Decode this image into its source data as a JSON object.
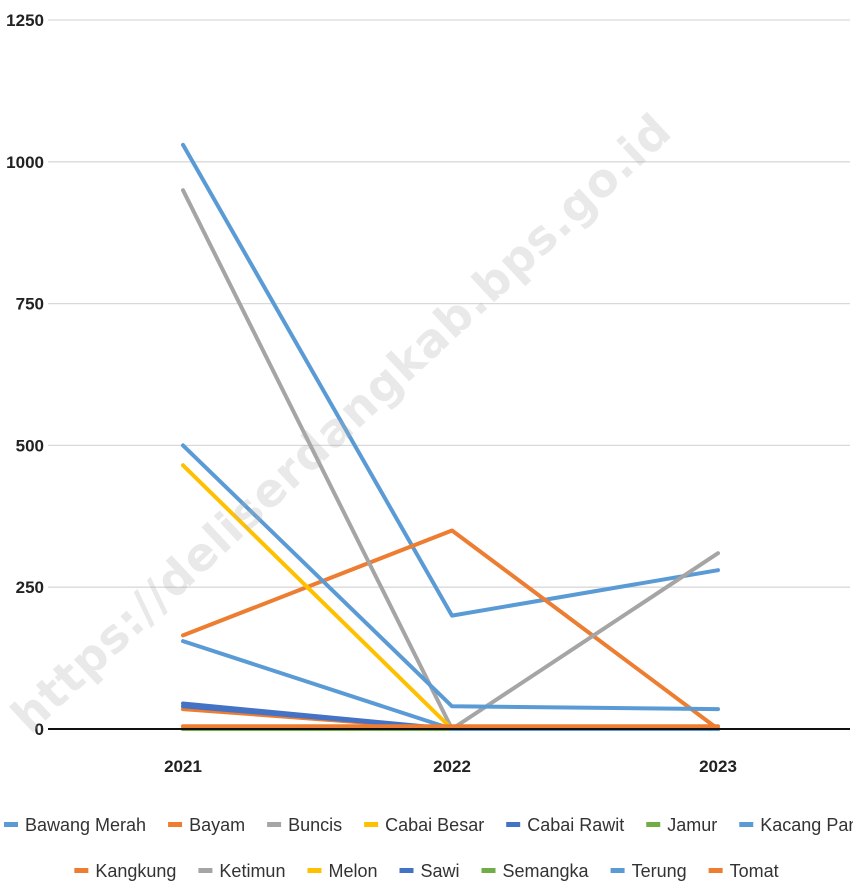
{
  "chart_data": {
    "type": "line",
    "categories": [
      "2021",
      "2022",
      "2023"
    ],
    "ylim": [
      0,
      1250
    ],
    "yticks": [
      "0",
      "250",
      "500",
      "750",
      "1000",
      "1250"
    ],
    "grid": true,
    "legend_position": "bottom",
    "watermark": "https://deliserdangkab.bps.go.id",
    "series": [
      {
        "name": "Bawang Merah",
        "color": "#5B9BD5",
        "values": [
          1030,
          200,
          280
        ]
      },
      {
        "name": "Bayam",
        "color": "#ED7D31",
        "values": [
          165,
          350,
          0
        ]
      },
      {
        "name": "Buncis",
        "color": "#A5A5A5",
        "values": [
          950,
          0,
          310
        ]
      },
      {
        "name": "Cabai Besar",
        "color": "#FFC000",
        "values": [
          465,
          0,
          0
        ]
      },
      {
        "name": "Cabai Rawit",
        "color": "#4472C4",
        "values": [
          45,
          0,
          0
        ]
      },
      {
        "name": "Jamur",
        "color": "#70AD47",
        "values": [
          0,
          0,
          0
        ]
      },
      {
        "name": "Kacang Panjang",
        "color": "#5B9BD5",
        "values": [
          500,
          40,
          35
        ]
      },
      {
        "name": "Kangkung",
        "color": "#ED7D31",
        "values": [
          35,
          0,
          0
        ]
      },
      {
        "name": "Ketimun",
        "color": "#A5A5A5",
        "values": [
          0,
          0,
          0
        ]
      },
      {
        "name": "Melon",
        "color": "#FFC000",
        "values": [
          0,
          0,
          0
        ]
      },
      {
        "name": "Sawi",
        "color": "#4472C4",
        "values": [
          40,
          0,
          0
        ]
      },
      {
        "name": "Semangka",
        "color": "#70AD47",
        "values": [
          0,
          0,
          0
        ]
      },
      {
        "name": "Terung",
        "color": "#5B9BD5",
        "values": [
          155,
          0,
          0
        ]
      },
      {
        "name": "Tomat",
        "color": "#ED7D31",
        "values": [
          5,
          5,
          5
        ]
      }
    ]
  }
}
